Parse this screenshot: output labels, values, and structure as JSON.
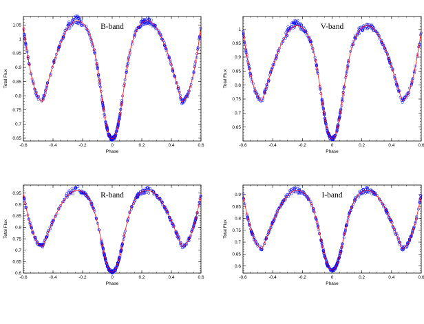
{
  "figure": {
    "background": "#ffffff",
    "fit_color": "#ff0000",
    "point_color": "#0000ff"
  },
  "chart_data": [
    {
      "type": "scatter",
      "title": "B-band",
      "xlabel": "Phase",
      "ylabel": "Total Flux",
      "xlim": [
        -0.6,
        0.6
      ],
      "ylim": [
        0.64,
        1.08
      ],
      "xticks": [
        "-0.6",
        "-0.4",
        "-0.2",
        "0",
        "0.2",
        "0.4",
        "0.6"
      ],
      "yticks": [
        "0.65",
        "0.7",
        "0.75",
        "0.8",
        "0.85",
        "0.9",
        "0.95",
        "1",
        "1.05"
      ],
      "ytick_values": [
        0.65,
        0.7,
        0.75,
        0.8,
        0.85,
        0.9,
        0.95,
        1.0,
        1.05
      ],
      "grid": false,
      "series": [
        {
          "kind": "observations",
          "marker": "circle",
          "color": "#0000ff",
          "min_level": 0.648,
          "max_level": 1.065,
          "secondary_min": 0.785,
          "trough_phase": 0.47,
          "trough_extra_depth": 0.005
        },
        {
          "kind": "model",
          "line": "solid",
          "color": "#ff0000",
          "min_level": 0.648,
          "max_level": 1.065,
          "secondary_min": 0.785,
          "trough_phase": 0.47,
          "trough_extra_depth": 0.005
        }
      ]
    },
    {
      "type": "scatter",
      "title": "V-band",
      "xlabel": "Phase",
      "ylabel": "Total Flux",
      "xlim": [
        -0.6,
        0.6
      ],
      "ylim": [
        0.6,
        1.045
      ],
      "xticks": [
        "-0.6",
        "-0.4",
        "-0.2",
        "0",
        "0.2",
        "0.4",
        "0.6"
      ],
      "yticks": [
        "0.65",
        "0.7",
        "0.75",
        "0.8",
        "0.85",
        "0.9",
        "0.95",
        "1"
      ],
      "ytick_values": [
        0.65,
        0.7,
        0.75,
        0.8,
        0.85,
        0.9,
        0.95,
        1.0
      ],
      "grid": false,
      "series": [
        {
          "kind": "observations",
          "marker": "circle",
          "color": "#0000ff",
          "min_level": 0.608,
          "max_level": 1.012,
          "secondary_min": 0.75,
          "trough_phase": 0.47,
          "trough_extra_depth": 0.005
        },
        {
          "kind": "model",
          "line": "solid",
          "color": "#ff0000",
          "min_level": 0.608,
          "max_level": 1.012,
          "secondary_min": 0.75,
          "trough_phase": 0.47,
          "trough_extra_depth": 0.005
        }
      ]
    },
    {
      "type": "scatter",
      "title": "R-band",
      "xlabel": "Phase",
      "ylabel": "Total Flux",
      "xlim": [
        -0.6,
        0.6
      ],
      "ylim": [
        0.6,
        0.985
      ],
      "xticks": [
        "-0.6",
        "-0.4",
        "-0.2",
        "0",
        "0.2",
        "0.4",
        "0.6"
      ],
      "yticks": [
        "0.6",
        "0.65",
        "0.7",
        "0.75",
        "0.8",
        "0.85",
        "0.9",
        "0.95"
      ],
      "ytick_values": [
        0.6,
        0.65,
        0.7,
        0.75,
        0.8,
        0.85,
        0.9,
        0.95
      ],
      "grid": false,
      "series": [
        {
          "kind": "observations",
          "marker": "circle",
          "color": "#0000ff",
          "min_level": 0.605,
          "max_level": 0.962,
          "secondary_min": 0.722,
          "trough_phase": 0.47,
          "trough_extra_depth": 0.005
        },
        {
          "kind": "model",
          "line": "solid",
          "color": "#ff0000",
          "min_level": 0.605,
          "max_level": 0.962,
          "secondary_min": 0.722,
          "trough_phase": 0.47,
          "trough_extra_depth": 0.005
        }
      ]
    },
    {
      "type": "scatter",
      "title": "I-band",
      "xlabel": "Phase",
      "ylabel": "Total Flux",
      "xlim": [
        -0.6,
        0.6
      ],
      "ylim": [
        0.57,
        0.94
      ],
      "xticks": [
        "-0.6",
        "-0.4",
        "-0.2",
        "0",
        "0.2",
        "0.4",
        "0.6"
      ],
      "yticks": [
        "0.6",
        "0.65",
        "0.7",
        "0.75",
        "0.8",
        "0.85",
        "0.9"
      ],
      "ytick_values": [
        0.6,
        0.65,
        0.7,
        0.75,
        0.8,
        0.85,
        0.9
      ],
      "grid": false,
      "series": [
        {
          "kind": "observations",
          "marker": "circle",
          "color": "#0000ff",
          "min_level": 0.583,
          "max_level": 0.918,
          "secondary_min": 0.678,
          "trough_phase": 0.47,
          "trough_extra_depth": 0.005
        },
        {
          "kind": "model",
          "line": "solid",
          "color": "#ff0000",
          "min_level": 0.583,
          "max_level": 0.918,
          "secondary_min": 0.678,
          "trough_phase": 0.47,
          "trough_extra_depth": 0.005
        }
      ]
    }
  ]
}
